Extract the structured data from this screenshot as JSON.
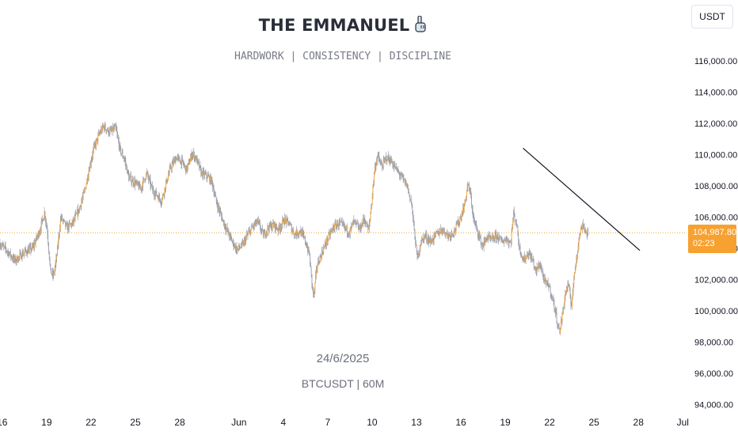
{
  "header": {
    "title": "THE EMMANUEL",
    "subtitle": "HARDWORK | CONSISTENCY | DISCIPLINE"
  },
  "watermark": {
    "date": "24/6/2025",
    "symbol": "BTCUSDT | 60M"
  },
  "currency_button": "USDT",
  "price_label": {
    "price": "104,987.80",
    "countdown": "02:23"
  },
  "colors": {
    "candle": "#f7a130",
    "wick": "#8a8f9c",
    "trendline": "#131722",
    "last_price_line": "#f7a130"
  },
  "chart_data": {
    "type": "line",
    "symbol": "BTCUSDT",
    "interval": "60M",
    "ylim": [
      93500,
      117500
    ],
    "y_ticks": [
      "94,000.00",
      "96,000.00",
      "98,000.00",
      "100,000.00",
      "102,000.00",
      "104,000.00",
      "106,000.00",
      "108,000.00",
      "110,000.00",
      "112,000.00",
      "114,000.00",
      "116,000.00"
    ],
    "y_tick_values": [
      94000,
      96000,
      98000,
      100000,
      102000,
      104000,
      106000,
      108000,
      110000,
      112000,
      114000,
      116000
    ],
    "x_ticks": [
      "16",
      "19",
      "22",
      "25",
      "28",
      "Jun",
      "4",
      "7",
      "10",
      "13",
      "16",
      "19",
      "22",
      "25",
      "28",
      "Jul"
    ],
    "x_tick_days": [
      16,
      19,
      22,
      25,
      28,
      32,
      35,
      38,
      41,
      44,
      47,
      50,
      53,
      56,
      59,
      62
    ],
    "x_axis_note": "day index: May 16 = 16, Jun 1 = 32, Jul 1 = 62",
    "xlim": [
      15.85,
      62.2
    ],
    "last_price": 104987.8,
    "price_path": [
      [
        15.85,
        104300
      ],
      [
        16.3,
        103900
      ],
      [
        16.9,
        103200
      ],
      [
        17.5,
        103700
      ],
      [
        18.1,
        104000
      ],
      [
        18.6,
        105200
      ],
      [
        18.9,
        106300
      ],
      [
        19.1,
        105000
      ],
      [
        19.3,
        102500
      ],
      [
        19.5,
        102200
      ],
      [
        19.7,
        103300
      ],
      [
        20.0,
        106000
      ],
      [
        20.4,
        105300
      ],
      [
        20.8,
        105600
      ],
      [
        21.2,
        106400
      ],
      [
        21.6,
        107600
      ],
      [
        21.9,
        109000
      ],
      [
        22.2,
        110300
      ],
      [
        22.6,
        111300
      ],
      [
        22.9,
        111800
      ],
      [
        23.3,
        111400
      ],
      [
        23.7,
        111700
      ],
      [
        24.0,
        110300
      ],
      [
        24.3,
        109700
      ],
      [
        24.6,
        108500
      ],
      [
        25.0,
        108200
      ],
      [
        25.4,
        107800
      ],
      [
        25.8,
        108800
      ],
      [
        26.2,
        107700
      ],
      [
        26.5,
        107400
      ],
      [
        26.8,
        107000
      ],
      [
        27.1,
        108100
      ],
      [
        27.4,
        109100
      ],
      [
        27.8,
        109800
      ],
      [
        28.2,
        109500
      ],
      [
        28.5,
        109000
      ],
      [
        28.9,
        110100
      ],
      [
        29.2,
        109600
      ],
      [
        29.5,
        108800
      ],
      [
        29.9,
        108600
      ],
      [
        30.2,
        108300
      ],
      [
        30.5,
        107000
      ],
      [
        30.9,
        105900
      ],
      [
        31.2,
        105200
      ],
      [
        31.6,
        104400
      ],
      [
        31.9,
        103900
      ],
      [
        32.3,
        104200
      ],
      [
        32.6,
        104800
      ],
      [
        33.0,
        105400
      ],
      [
        33.3,
        105700
      ],
      [
        33.7,
        104800
      ],
      [
        34.0,
        105300
      ],
      [
        34.4,
        105500
      ],
      [
        34.7,
        105200
      ],
      [
        35.1,
        105800
      ],
      [
        35.4,
        105600
      ],
      [
        35.8,
        104900
      ],
      [
        36.2,
        105100
      ],
      [
        36.5,
        104500
      ],
      [
        36.8,
        103600
      ],
      [
        37.0,
        101500
      ],
      [
        37.1,
        100900
      ],
      [
        37.3,
        102800
      ],
      [
        37.6,
        103600
      ],
      [
        38.0,
        104500
      ],
      [
        38.4,
        105300
      ],
      [
        38.8,
        105600
      ],
      [
        39.1,
        105400
      ],
      [
        39.5,
        105000
      ],
      [
        39.8,
        105700
      ],
      [
        40.2,
        105200
      ],
      [
        40.5,
        105900
      ],
      [
        40.8,
        105100
      ],
      [
        41.0,
        106800
      ],
      [
        41.2,
        109000
      ],
      [
        41.4,
        109900
      ],
      [
        41.7,
        109200
      ],
      [
        42.0,
        109800
      ],
      [
        42.3,
        109600
      ],
      [
        42.7,
        109000
      ],
      [
        43.0,
        108600
      ],
      [
        43.4,
        108000
      ],
      [
        43.7,
        106900
      ],
      [
        43.9,
        105000
      ],
      [
        44.1,
        103300
      ],
      [
        44.3,
        104300
      ],
      [
        44.6,
        104800
      ],
      [
        45.0,
        104400
      ],
      [
        45.4,
        104900
      ],
      [
        45.8,
        105200
      ],
      [
        46.2,
        104800
      ],
      [
        46.6,
        105100
      ],
      [
        47.0,
        105900
      ],
      [
        47.3,
        106800
      ],
      [
        47.5,
        108100
      ],
      [
        47.7,
        107400
      ],
      [
        47.9,
        105800
      ],
      [
        48.2,
        105000
      ],
      [
        48.5,
        104100
      ],
      [
        48.8,
        104700
      ],
      [
        49.1,
        104500
      ],
      [
        49.5,
        104800
      ],
      [
        49.8,
        104400
      ],
      [
        50.1,
        104600
      ],
      [
        50.4,
        104300
      ],
      [
        50.6,
        106200
      ],
      [
        50.8,
        105600
      ],
      [
        51.0,
        104000
      ],
      [
        51.3,
        103200
      ],
      [
        51.6,
        103700
      ],
      [
        51.9,
        103200
      ],
      [
        52.1,
        102500
      ],
      [
        52.4,
        103000
      ],
      [
        52.7,
        101800
      ],
      [
        53.0,
        101600
      ],
      [
        53.3,
        100500
      ],
      [
        53.5,
        99600
      ],
      [
        53.7,
        98600
      ],
      [
        53.9,
        99700
      ],
      [
        54.1,
        101100
      ],
      [
        54.3,
        101700
      ],
      [
        54.5,
        100300
      ],
      [
        54.7,
        102200
      ],
      [
        54.9,
        103800
      ],
      [
        55.1,
        105000
      ],
      [
        55.3,
        105600
      ],
      [
        55.5,
        104900
      ],
      [
        55.6,
        104988
      ]
    ],
    "annotations": [
      {
        "type": "trendline",
        "from": [
          51.2,
          110400
        ],
        "to": [
          59.1,
          103850
        ]
      }
    ]
  }
}
